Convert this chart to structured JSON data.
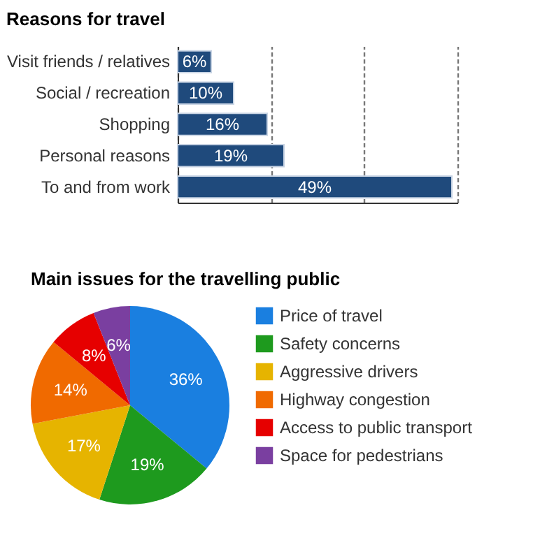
{
  "chart_data": [
    {
      "type": "bar",
      "title": "Reasons for travel",
      "orientation": "horizontal",
      "categories": [
        "Visit friends / relatives",
        "Social / recreation",
        "Shopping",
        "Personal reasons",
        "To and from work"
      ],
      "values": [
        6,
        10,
        16,
        19,
        49
      ],
      "color": "#1f4a7c",
      "value_labels": [
        "6%",
        "10%",
        "16%",
        "19%",
        "49%"
      ],
      "xlim": [
        0,
        50
      ],
      "xticks": [
        {
          "value": 0,
          "label": null
        },
        {
          "value": 16.67,
          "label": null
        },
        {
          "value": 33.33,
          "label": null
        },
        {
          "value": 50,
          "label": null
        }
      ],
      "grid": "x",
      "tick_labels": "y"
    },
    {
      "type": "pie",
      "title": "Main issues for the travelling public",
      "categories": [
        "Price of travel",
        "Safety concerns",
        "Aggressive drivers",
        "Highway congestion",
        "Access to public transport",
        "Space for pedestrians"
      ],
      "values": [
        36,
        19,
        17,
        14,
        8,
        6
      ],
      "colors": [
        "#1a7fe0",
        "#1e9a1e",
        "#e6b400",
        "#f06a00",
        "#e60000",
        "#7a3fa0"
      ],
      "value_labels": [
        "36%",
        "19%",
        "17%",
        "14%",
        "8%",
        "6%"
      ],
      "legend": "right"
    }
  ]
}
